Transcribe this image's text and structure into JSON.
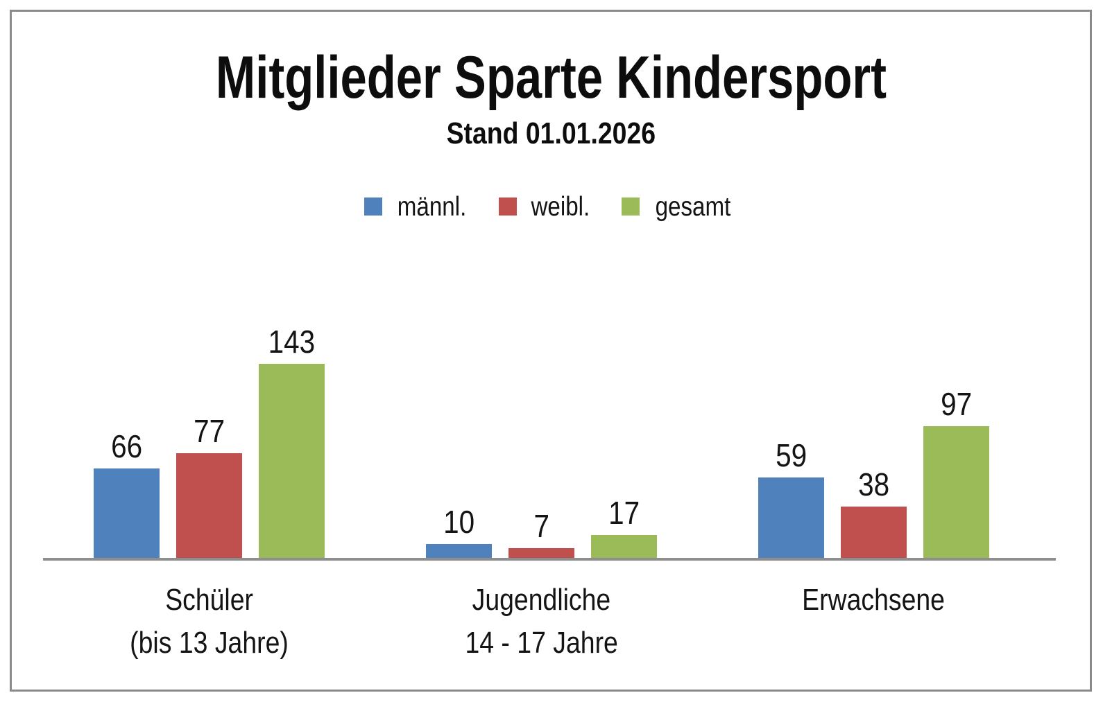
{
  "frame": {
    "border_color": "#8a8a8a"
  },
  "chart_data": {
    "type": "bar",
    "title": "Mitglieder Sparte Kindersport",
    "subtitle": "Stand 01.01.2026",
    "legend_position": "top",
    "legend_entries": [
      "männl.",
      "weibl.",
      "gesamt"
    ],
    "data_labels": true,
    "grid": false,
    "y_axis_visible": false,
    "axis_line_color": "#8e8e8e",
    "ylim": [
      0,
      160
    ],
    "categories": [
      {
        "key": "schueler",
        "label_lines": [
          "Schüler",
          "(bis 13 Jahre)"
        ]
      },
      {
        "key": "jugendliche",
        "label_lines": [
          "Jugendliche",
          "14 - 17 Jahre"
        ]
      },
      {
        "key": "erwachsene",
        "label_lines": [
          "Erwachsene"
        ]
      }
    ],
    "series": [
      {
        "key": "maennl",
        "name": "männl.",
        "color": "#4f81bd",
        "values": [
          66,
          10,
          59
        ]
      },
      {
        "key": "weibl",
        "name": "weibl.",
        "color": "#c0504d",
        "values": [
          77,
          7,
          38
        ]
      },
      {
        "key": "gesamt",
        "name": "gesamt",
        "color": "#9bbb59",
        "values": [
          143,
          17,
          97
        ]
      }
    ]
  }
}
